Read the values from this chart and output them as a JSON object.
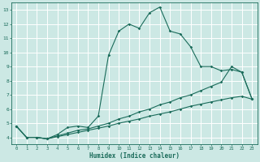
{
  "title": "",
  "xlabel": "Humidex (Indice chaleur)",
  "background_color": "#cce8e4",
  "grid_color": "#ffffff",
  "line_color": "#1a6b5a",
  "xlim": [
    -0.5,
    23.5
  ],
  "ylim": [
    3.5,
    13.5
  ],
  "xticks": [
    0,
    1,
    2,
    3,
    4,
    5,
    6,
    7,
    8,
    9,
    10,
    11,
    12,
    13,
    14,
    15,
    16,
    17,
    18,
    19,
    20,
    21,
    22,
    23
  ],
  "yticks": [
    4,
    5,
    6,
    7,
    8,
    9,
    10,
    11,
    12,
    13
  ],
  "line1_x": [
    0,
    1,
    2,
    3,
    4,
    5,
    6,
    7,
    8,
    9,
    10,
    11,
    12,
    13,
    14,
    15,
    16,
    17,
    18,
    19,
    20,
    21,
    22,
    23
  ],
  "line1_y": [
    4.8,
    4.0,
    4.0,
    3.9,
    4.2,
    4.7,
    4.8,
    4.7,
    5.5,
    9.8,
    11.5,
    12.0,
    11.7,
    12.8,
    13.2,
    11.5,
    11.3,
    10.4,
    9.0,
    9.0,
    8.7,
    8.8,
    8.6,
    6.7
  ],
  "line2_x": [
    0,
    1,
    2,
    3,
    4,
    5,
    6,
    7,
    8,
    9,
    10,
    11,
    12,
    13,
    14,
    15,
    16,
    17,
    18,
    19,
    20,
    21,
    22,
    23
  ],
  "line2_y": [
    4.8,
    4.0,
    4.0,
    3.9,
    4.1,
    4.3,
    4.5,
    4.6,
    4.8,
    5.0,
    5.3,
    5.5,
    5.8,
    6.0,
    6.3,
    6.5,
    6.8,
    7.0,
    7.3,
    7.6,
    7.9,
    9.0,
    8.6,
    6.7
  ],
  "line3_x": [
    0,
    1,
    2,
    3,
    4,
    5,
    6,
    7,
    8,
    9,
    10,
    11,
    12,
    13,
    14,
    15,
    16,
    17,
    18,
    19,
    20,
    21,
    22,
    23
  ],
  "line3_y": [
    4.8,
    4.0,
    4.0,
    3.9,
    4.05,
    4.2,
    4.35,
    4.5,
    4.65,
    4.8,
    5.0,
    5.15,
    5.3,
    5.5,
    5.65,
    5.8,
    6.0,
    6.2,
    6.35,
    6.5,
    6.65,
    6.8,
    6.9,
    6.7
  ]
}
